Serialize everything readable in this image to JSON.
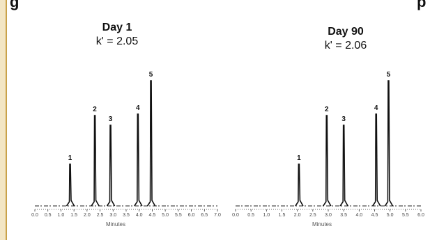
{
  "heading": "g",
  "heading_right": "p",
  "chart_data": [
    {
      "type": "line",
      "title": "Day 1",
      "subtitle": "k' = 2.05",
      "xlabel": "Minutes",
      "ylabel": "",
      "x_ticks": [
        "0.0",
        "0.5",
        "1.0",
        "1.5",
        "2.0",
        "2.5",
        "3.0",
        "3.5",
        "4.0",
        "4.5",
        "5.0",
        "5.5",
        "6.0",
        "6.5",
        "7.0"
      ],
      "peaks": [
        {
          "label": "1",
          "time": 1.35,
          "height": 0.3
        },
        {
          "label": "2",
          "time": 2.3,
          "height": 0.65
        },
        {
          "label": "3",
          "time": 2.9,
          "height": 0.58
        },
        {
          "label": "4",
          "time": 3.95,
          "height": 0.66
        },
        {
          "label": "5",
          "time": 4.45,
          "height": 0.9
        }
      ]
    },
    {
      "type": "line",
      "title": "Day 90",
      "subtitle": "k' = 2.06",
      "xlabel": "Minutes",
      "ylabel": "",
      "x_ticks": [
        "0.0",
        "0.5",
        "1.0",
        "1.5",
        "2.0",
        "2.5",
        "3.0",
        "3.5",
        "4.0",
        "4.5",
        "5.0",
        "5.5",
        "6.0"
      ],
      "peaks": [
        {
          "label": "1",
          "time": 2.05,
          "height": 0.3
        },
        {
          "label": "2",
          "time": 2.95,
          "height": 0.65
        },
        {
          "label": "3",
          "time": 3.5,
          "height": 0.58
        },
        {
          "label": "4",
          "time": 4.55,
          "height": 0.66
        },
        {
          "label": "5",
          "time": 4.95,
          "height": 0.9
        }
      ]
    }
  ]
}
